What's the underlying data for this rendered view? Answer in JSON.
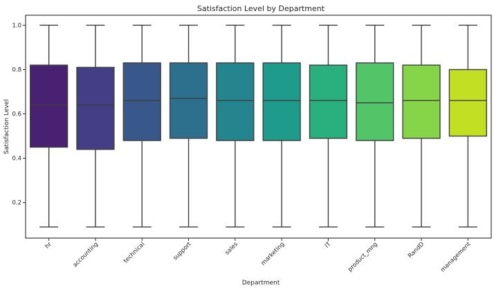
{
  "chart_data": {
    "type": "boxplot",
    "title": "Satisfaction Level by Department",
    "xlabel": "Department",
    "ylabel": "Satisfaction Level",
    "ylim": [
      0.04,
      1.045
    ],
    "yticks": [
      0.2,
      0.4,
      0.6,
      0.8,
      1.0
    ],
    "ytick_labels": [
      "0.2",
      "0.4",
      "0.6",
      "0.8",
      "1.0"
    ],
    "grid": false,
    "categories": [
      "hr",
      "accounting",
      "technical",
      "support",
      "sales",
      "marketing",
      "IT",
      "product_mng",
      "RandD",
      "management"
    ],
    "series": [
      {
        "name": "hr",
        "whisker_low": 0.09,
        "q1": 0.45,
        "median": 0.64,
        "q3": 0.82,
        "whisker_high": 1.0,
        "color": "#482173"
      },
      {
        "name": "accounting",
        "whisker_low": 0.09,
        "q1": 0.44,
        "median": 0.64,
        "q3": 0.81,
        "whisker_high": 1.0,
        "color": "#433e85"
      },
      {
        "name": "technical",
        "whisker_low": 0.09,
        "q1": 0.48,
        "median": 0.66,
        "q3": 0.83,
        "whisker_high": 1.0,
        "color": "#38588c"
      },
      {
        "name": "support",
        "whisker_low": 0.09,
        "q1": 0.49,
        "median": 0.67,
        "q3": 0.83,
        "whisker_high": 1.0,
        "color": "#2d708e"
      },
      {
        "name": "sales",
        "whisker_low": 0.09,
        "q1": 0.48,
        "median": 0.66,
        "q3": 0.83,
        "whisker_high": 1.0,
        "color": "#25858e"
      },
      {
        "name": "marketing",
        "whisker_low": 0.09,
        "q1": 0.48,
        "median": 0.66,
        "q3": 0.83,
        "whisker_high": 1.0,
        "color": "#1e9b8a"
      },
      {
        "name": "IT",
        "whisker_low": 0.09,
        "q1": 0.49,
        "median": 0.66,
        "q3": 0.82,
        "whisker_high": 1.0,
        "color": "#2ab07f"
      },
      {
        "name": "product_mng",
        "whisker_low": 0.09,
        "q1": 0.48,
        "median": 0.65,
        "q3": 0.83,
        "whisker_high": 1.0,
        "color": "#52c569"
      },
      {
        "name": "RandD",
        "whisker_low": 0.09,
        "q1": 0.49,
        "median": 0.66,
        "q3": 0.82,
        "whisker_high": 1.0,
        "color": "#86d549"
      },
      {
        "name": "management",
        "whisker_low": 0.09,
        "q1": 0.5,
        "median": 0.66,
        "q3": 0.8,
        "whisker_high": 1.0,
        "color": "#c2df23"
      }
    ]
  }
}
